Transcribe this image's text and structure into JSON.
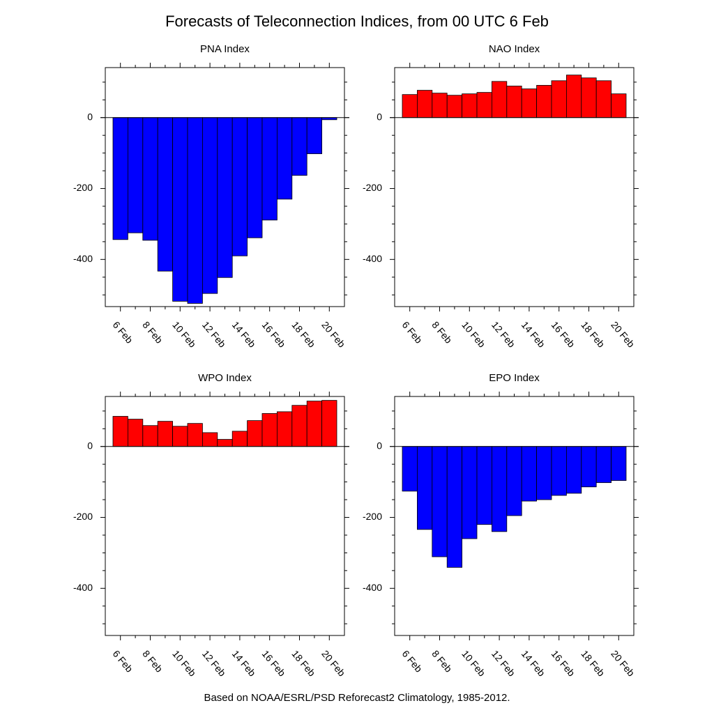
{
  "title": "Forecasts of Teleconnection Indices, from 00 UTC 6 Feb",
  "footnote": "Based on NOAA/ESRL/PSD Reforecast2 Climatology, 1985-2012.",
  "chart_data": [
    {
      "type": "bar",
      "title": "PNA Index",
      "categories": [
        "6 Feb",
        null,
        "8 Feb",
        null,
        "10 Feb",
        null,
        "12 Feb",
        null,
        "14 Feb",
        null,
        "16 Feb",
        null,
        "18 Feb",
        null,
        "20 Feb"
      ],
      "values": [
        -344,
        -325,
        -346,
        -433,
        -518,
        -524,
        -496,
        -451,
        -390,
        -339,
        -289,
        -230,
        -163,
        -102,
        -6
      ],
      "color": "#0000ff",
      "ylim": [
        -533,
        141
      ],
      "yticks": [
        -400,
        -200,
        0
      ],
      "yminorticks": [
        -500,
        -450,
        -350,
        -300,
        -250,
        -150,
        -100,
        -50,
        50,
        100
      ]
    },
    {
      "type": "bar",
      "title": "NAO Index",
      "categories": [
        "6 Feb",
        null,
        "8 Feb",
        null,
        "10 Feb",
        null,
        "12 Feb",
        null,
        "14 Feb",
        null,
        "16 Feb",
        null,
        "18 Feb",
        null,
        "20 Feb"
      ],
      "values": [
        65,
        77,
        69,
        63,
        67,
        71,
        102,
        89,
        81,
        91,
        104,
        120,
        112,
        104,
        67
      ],
      "color": "#ff0000",
      "ylim": [
        -533,
        141
      ],
      "yticks": [
        -400,
        -200,
        0
      ],
      "yminorticks": [
        -500,
        -450,
        -350,
        -300,
        -250,
        -150,
        -100,
        -50,
        50,
        100
      ]
    },
    {
      "type": "bar",
      "title": "WPO Index",
      "categories": [
        "6 Feb",
        null,
        "8 Feb",
        null,
        "10 Feb",
        null,
        "12 Feb",
        null,
        "14 Feb",
        null,
        "16 Feb",
        null,
        "18 Feb",
        null,
        "20 Feb"
      ],
      "values": [
        85,
        77,
        59,
        71,
        57,
        65,
        39,
        20,
        43,
        73,
        93,
        98,
        116,
        128,
        130
      ],
      "color": "#ff0000",
      "ylim": [
        -533,
        141
      ],
      "yticks": [
        -400,
        -200,
        0
      ],
      "yminorticks": [
        -500,
        -450,
        -350,
        -300,
        -250,
        -150,
        -100,
        -50,
        50,
        100
      ]
    },
    {
      "type": "bar",
      "title": "EPO Index",
      "categories": [
        "6 Feb",
        null,
        "8 Feb",
        null,
        "10 Feb",
        null,
        "12 Feb",
        null,
        "14 Feb",
        null,
        "16 Feb",
        null,
        "18 Feb",
        null,
        "20 Feb"
      ],
      "values": [
        -126,
        -234,
        -311,
        -341,
        -260,
        -220,
        -240,
        -195,
        -154,
        -150,
        -138,
        -132,
        -114,
        -102,
        -96
      ],
      "color": "#0000ff",
      "ylim": [
        -533,
        141
      ],
      "yticks": [
        -400,
        -200,
        0
      ],
      "yminorticks": [
        -500,
        -450,
        -350,
        -300,
        -250,
        -150,
        -100,
        -50,
        50,
        100
      ]
    }
  ]
}
